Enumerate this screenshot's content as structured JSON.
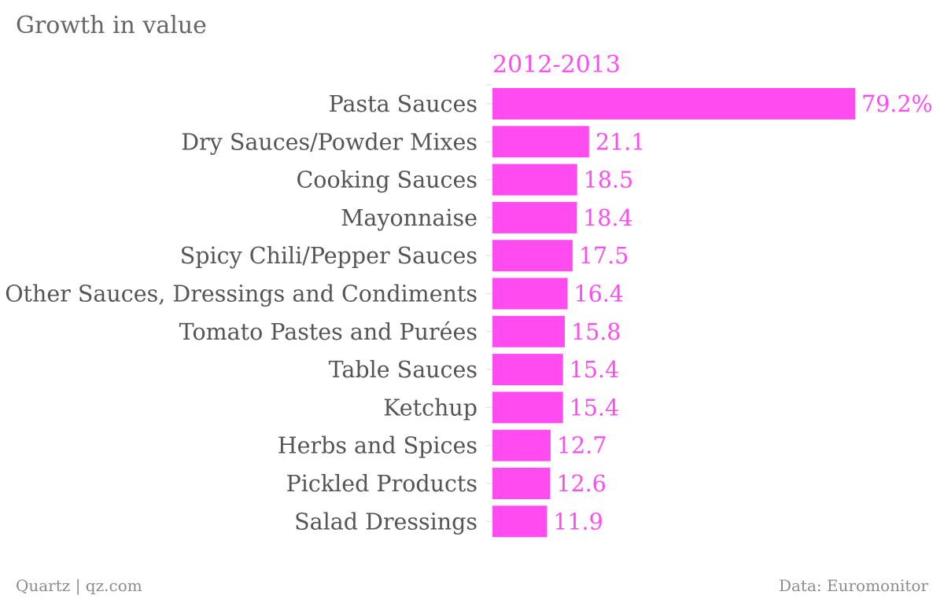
{
  "chart_data": {
    "type": "bar",
    "orientation": "horizontal",
    "title": "Growth in value",
    "series": [
      {
        "name": "2012-2013",
        "color": "#ff4cf0",
        "values": [
          79.2,
          21.1,
          18.5,
          18.4,
          17.5,
          16.4,
          15.8,
          15.4,
          15.4,
          12.7,
          12.6,
          11.9
        ]
      }
    ],
    "categories": [
      "Pasta Sauces",
      "Dry Sauces/Powder Mixes",
      "Cooking Sauces",
      "Mayonnaise",
      "Spicy Chili/Pepper Sauces",
      "Other Sauces, Dressings and Condiments",
      "Tomato Pastes and Purées",
      "Table Sauces",
      "Ketchup",
      "Herbs and Spices",
      "Pickled Products",
      "Salad Dressings"
    ],
    "value_labels": [
      "79.2%",
      "21.1",
      "18.5",
      "18.4",
      "17.5",
      "16.4",
      "15.8",
      "15.4",
      "15.4",
      "12.7",
      "12.6",
      "11.9"
    ],
    "xlim": [
      0,
      79.2
    ],
    "grid": false,
    "legend": "none"
  },
  "footer": {
    "source_left": "Quartz | qz.com",
    "source_right": "Data: Euromonitor"
  },
  "colors": {
    "accent": "#ff4cf0",
    "title_text": "#666666",
    "category_text": "#555555",
    "footer_text": "#8c8c8c",
    "tick": "#dddddd"
  }
}
